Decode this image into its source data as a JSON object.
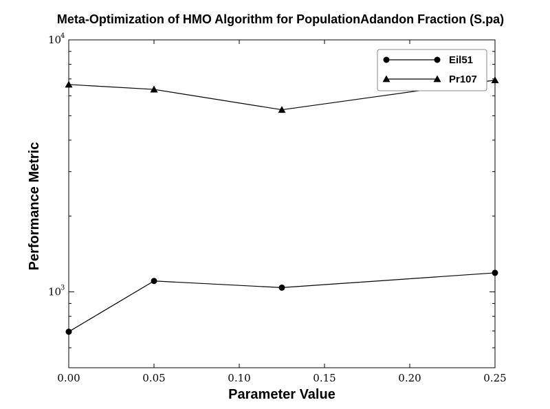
{
  "chart_data": {
    "type": "line",
    "title": "Meta-Optimization of HMO Algorithm for PopulationAdandon Fraction (S.pa)",
    "xlabel": "Parameter Value",
    "ylabel": "Performance Metric",
    "xlim": [
      0.0,
      0.25
    ],
    "ylim": [
      500,
      10000
    ],
    "yscale": "log",
    "grid": false,
    "legend_position": "top-right",
    "x_ticks": [
      "0.00",
      "0.05",
      "0.10",
      "0.15",
      "0.20",
      "0.25"
    ],
    "y_ticks": [
      {
        "base": "10",
        "exp": "3",
        "value": 1000
      },
      {
        "base": "10",
        "exp": "4",
        "value": 10000
      }
    ],
    "series": [
      {
        "name": "Eil51",
        "marker": "circle",
        "x": [
          0.0,
          0.05,
          0.125,
          0.25
        ],
        "y": [
          695,
          1105,
          1040,
          1190
        ]
      },
      {
        "name": "Pr107",
        "marker": "triangle",
        "x": [
          0.0,
          0.05,
          0.125,
          0.25
        ],
        "y": [
          6650,
          6360,
          5280,
          6920
        ]
      }
    ]
  }
}
